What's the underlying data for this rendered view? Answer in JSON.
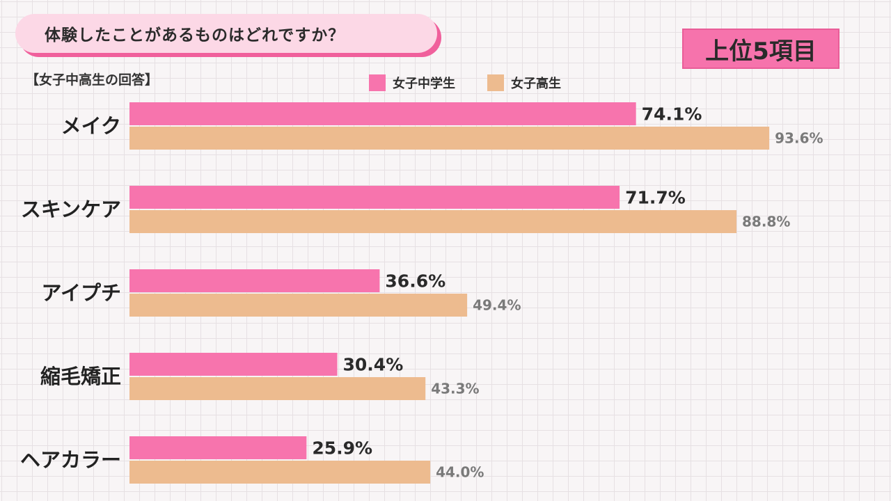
{
  "header": {
    "title": "体験したことがあるものはどれですか？",
    "badge": "上位5項目",
    "subtitle": "【女子中高生の回答】"
  },
  "legend": {
    "items": [
      {
        "label": "女子中学生",
        "color": "#f774ad"
      },
      {
        "label": "女子高生",
        "color": "#edbb8f"
      }
    ]
  },
  "chart_data": {
    "type": "bar",
    "orientation": "horizontal",
    "title": "体験したことがあるものはどれですか？",
    "categories": [
      "メイク",
      "スキンケア",
      "アイプチ",
      "縮毛矯正",
      "ヘアカラー"
    ],
    "series": [
      {
        "name": "女子中学生",
        "color": "#f774ad",
        "values": [
          74.1,
          71.7,
          36.6,
          30.4,
          25.9
        ],
        "labels": [
          "74.1%",
          "71.7%",
          "36.6%",
          "30.4%",
          "25.9%"
        ]
      },
      {
        "name": "女子高生",
        "color": "#edbb8f",
        "values": [
          93.6,
          88.8,
          49.4,
          43.3,
          44.0
        ],
        "labels": [
          "93.6%",
          "88.8%",
          "49.4%",
          "43.3%",
          "44.0%"
        ]
      }
    ],
    "xlim": [
      0,
      100
    ],
    "grid": true,
    "legend_position": "top"
  }
}
